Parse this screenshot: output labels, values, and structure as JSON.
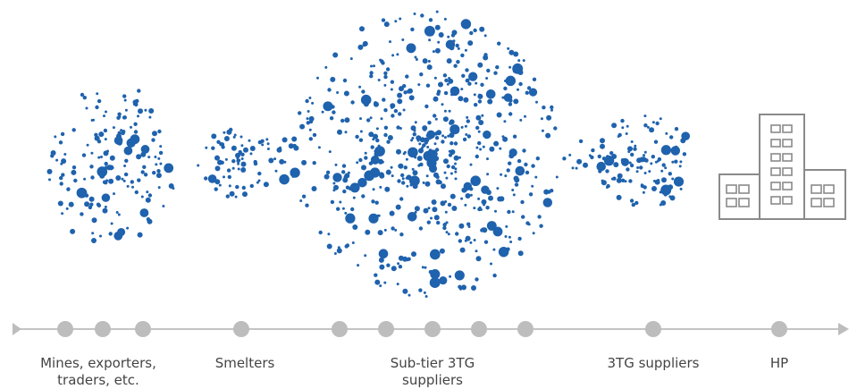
{
  "stages": [
    {
      "lines": [
        "Mines, exporters,",
        "traders, etc."
      ]
    },
    {
      "lines": [
        "Smelters"
      ]
    },
    {
      "lines": [
        "Sub-tier 3TG",
        "suppliers"
      ]
    },
    {
      "lines": [
        "3TG suppliers"
      ]
    },
    {
      "lines": [
        "HP"
      ]
    }
  ]
}
